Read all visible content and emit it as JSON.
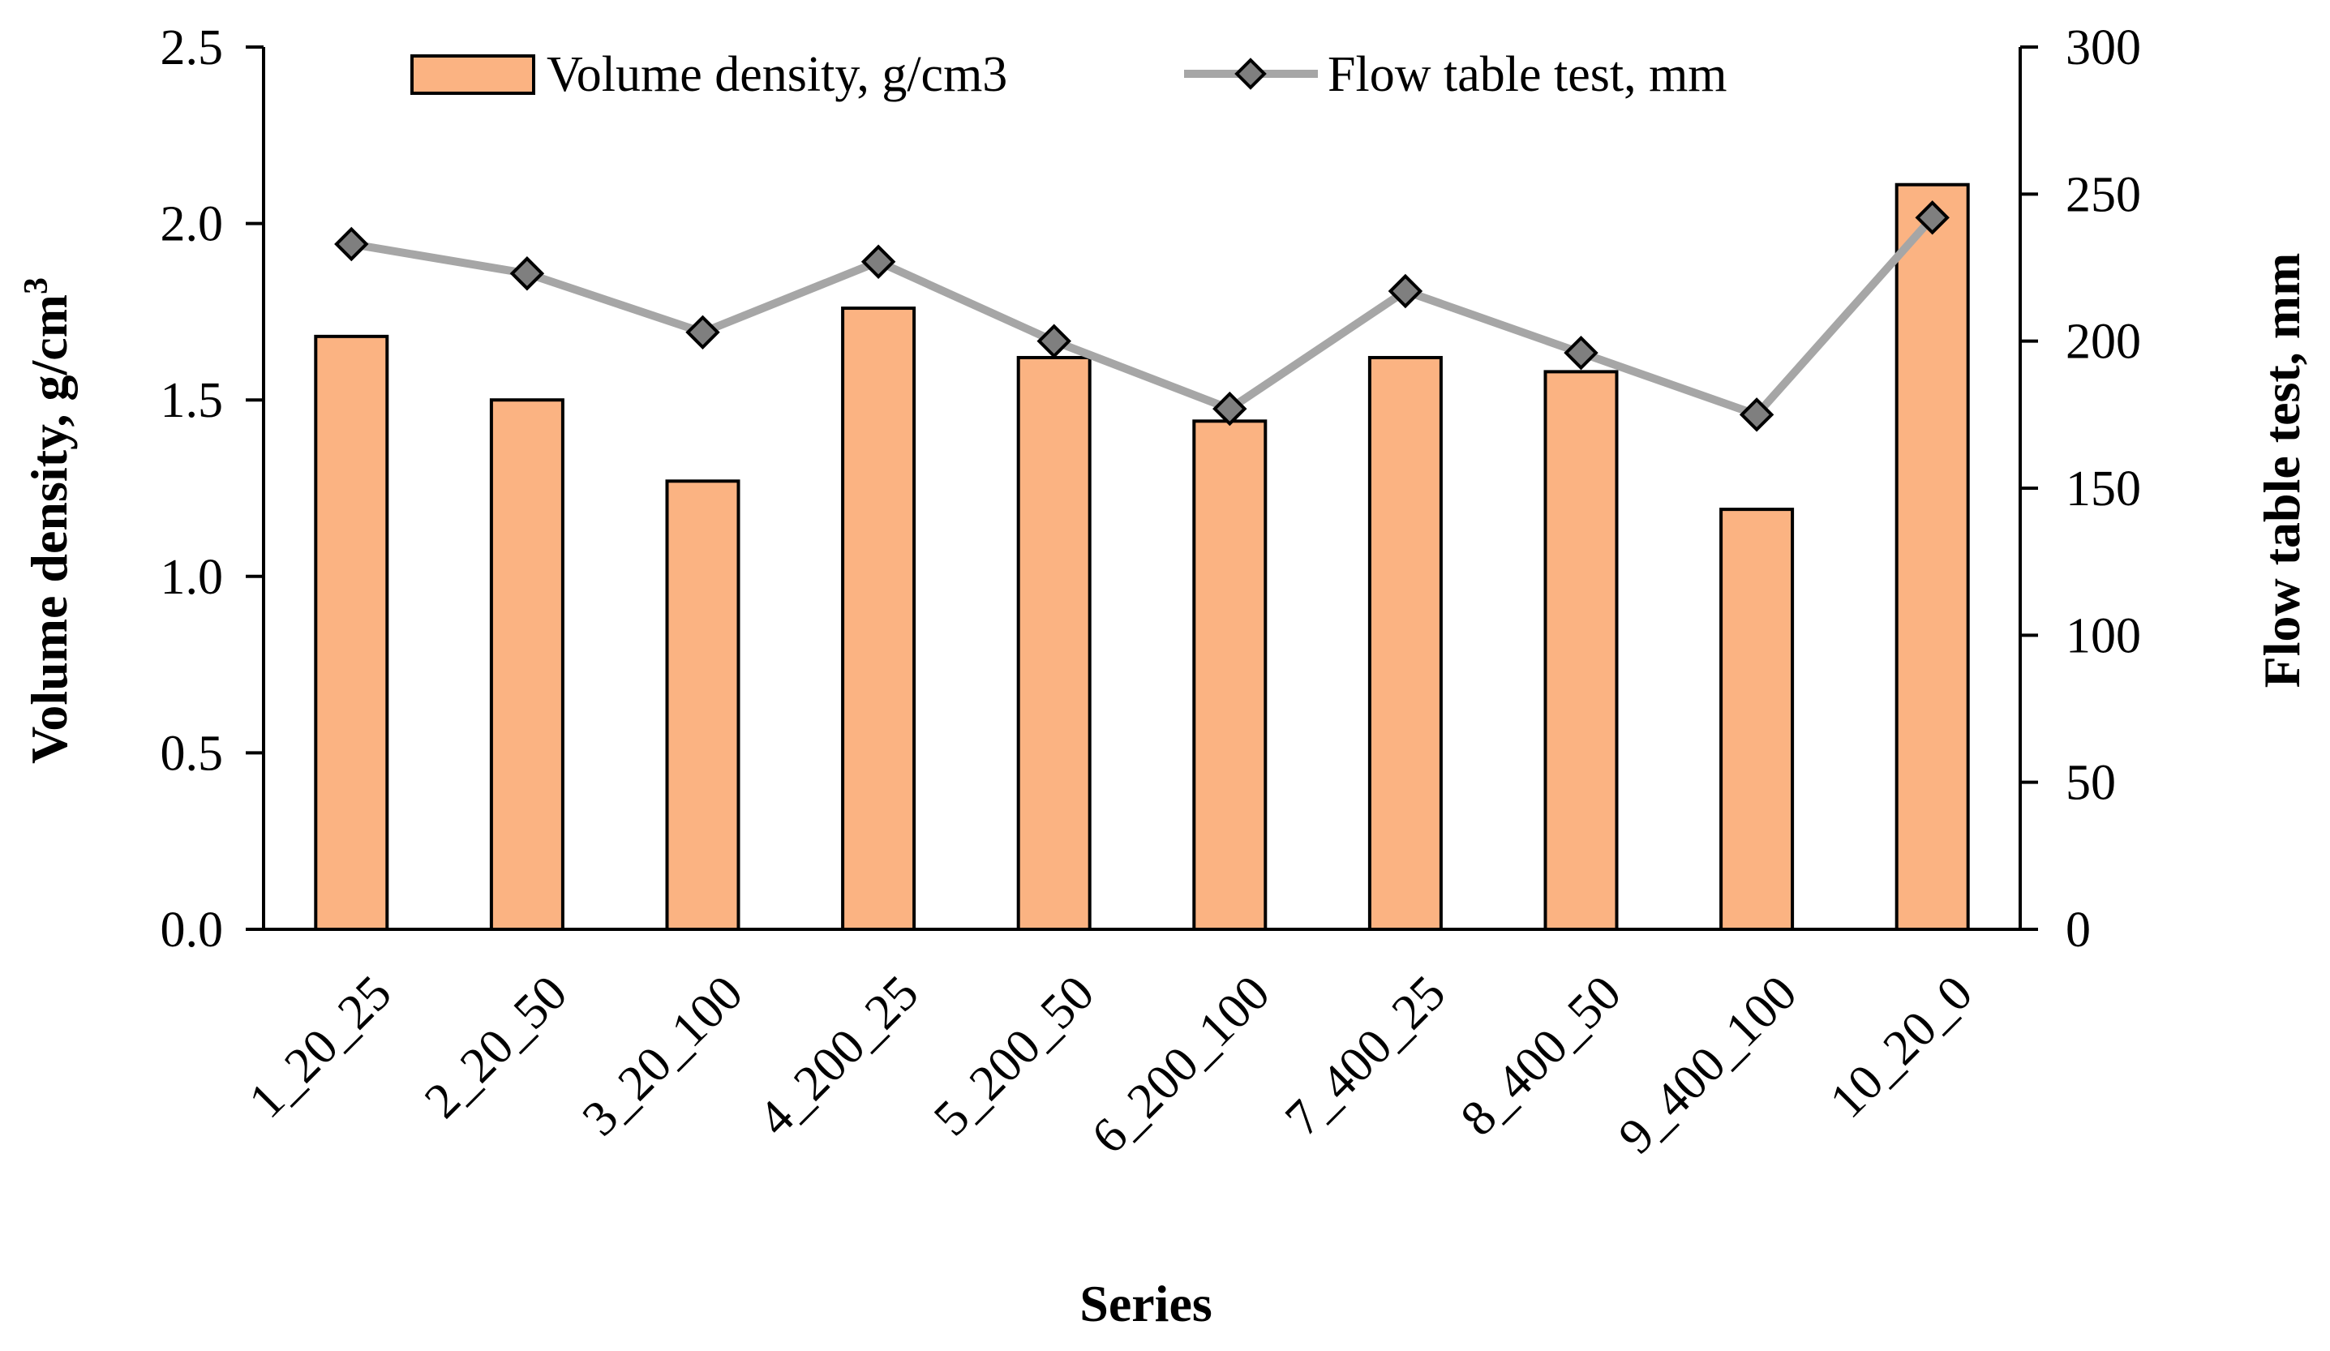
{
  "chart_data": {
    "type": "bar",
    "xlabel": "Series",
    "categories": [
      "1_20_25",
      "2_20_50",
      "3_20_100",
      "4_200_25",
      "5_200_50",
      "6_200_100",
      "7_400_25",
      "8_400_50",
      "9_400_100",
      "10_20_0"
    ],
    "y_left": {
      "label_main": "Volume density, g/cm",
      "label_sup": "3",
      "ylim": [
        0,
        2.5
      ],
      "ticks": [
        "0.0",
        "0.5",
        "1.0",
        "1.5",
        "2.0",
        "2.5"
      ]
    },
    "y_right": {
      "label": "Flow table test, mm",
      "ylim": [
        0,
        300
      ],
      "ticks": [
        "0",
        "50",
        "100",
        "150",
        "200",
        "250",
        "300"
      ]
    },
    "series": [
      {
        "name": "Volume density, g/cm3",
        "type": "bar",
        "axis": "left",
        "color": "#fbb382",
        "values": [
          1.68,
          1.5,
          1.27,
          1.76,
          1.62,
          1.44,
          1.62,
          1.58,
          1.19,
          2.11
        ]
      },
      {
        "name": "Flow table test, mm",
        "type": "line",
        "axis": "right",
        "color": "#a6a6a6",
        "marker_color": "#7f7f7f",
        "values": [
          233,
          223,
          203,
          227,
          200,
          177,
          217,
          196,
          175,
          242
        ]
      }
    ],
    "legend": "top-center",
    "grid": false
  }
}
